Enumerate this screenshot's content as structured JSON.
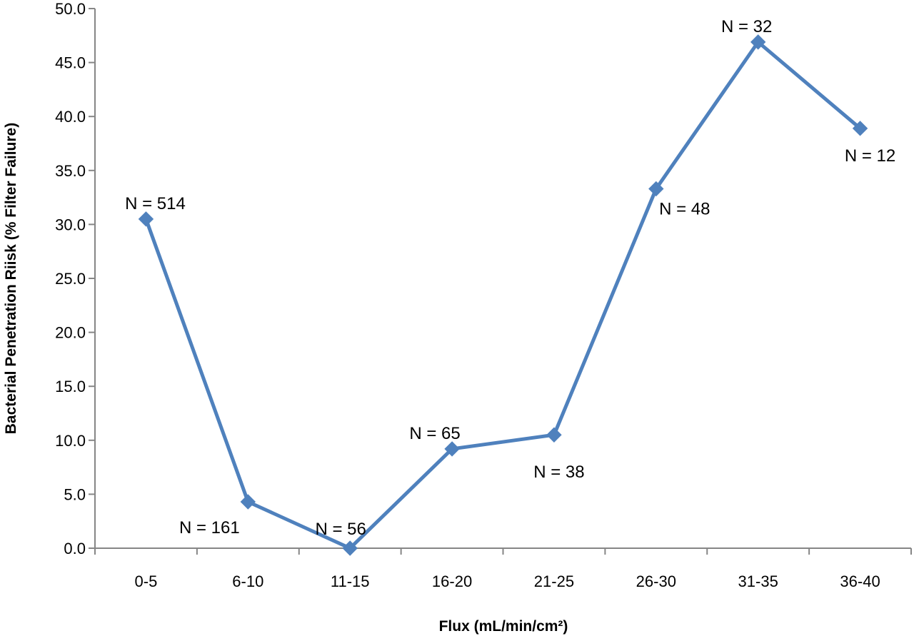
{
  "chart_data": {
    "type": "line",
    "title": "",
    "xlabel": "Flux (mL/min/cm²)",
    "ylabel": "Bacterial Penetration Riisk (% Filter Failure)",
    "categories": [
      "0-5",
      "6-10",
      "11-15",
      "16-20",
      "21-25",
      "26-30",
      "31-35",
      "36-40"
    ],
    "series": [
      {
        "values": [
          30.5,
          4.3,
          0.0,
          9.2,
          10.5,
          33.3,
          46.9,
          38.9
        ],
        "color": "#4f81bd",
        "marker": "diamond"
      }
    ],
    "data_labels": [
      "N = 514",
      "N = 161",
      "N = 56",
      "N = 65",
      "N = 38",
      "N = 48",
      "N = 32",
      "N = 12"
    ],
    "y_ticks": [
      "0.0",
      "5.0",
      "10.0",
      "15.0",
      "20.0",
      "25.0",
      "30.0",
      "35.0",
      "40.0",
      "45.0",
      "50.0"
    ],
    "ylim": [
      0,
      50
    ],
    "grid": false,
    "legend": "none"
  }
}
